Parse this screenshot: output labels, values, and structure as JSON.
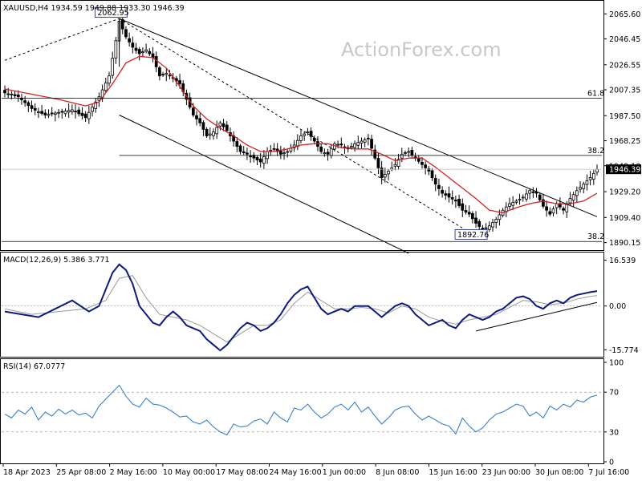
{
  "chart_data": [
    {
      "panel": "price",
      "type": "candlestick",
      "header": "XAUUSD,H4  1934.59 1949.88 1933.30 1946.39",
      "watermark": "ActionForex.com",
      "ylim": [
        1885,
        2075
      ],
      "y_ticks": [
        "2065.60",
        "2046.45",
        "2026.55",
        "2007.35",
        "1987.50",
        "1968.25",
        "1949.10",
        "1929.20",
        "1909.40",
        "1890.15"
      ],
      "x_ticks": [
        "18 Apr 2023",
        "25 Apr 08:00",
        "2 May 16:00",
        "10 May 00:00",
        "17 May 08:00",
        "24 May 16:00",
        "1 Jun 00:00",
        "8 Jun 08:00",
        "15 Jun 16:00",
        "23 Jun 00:00",
        "30 Jun 08:00",
        "7 Jul 16:00"
      ],
      "last_price": "1946.39",
      "close_path": [
        [
          0,
          2005
        ],
        [
          4,
          2002
        ],
        [
          8,
          1993
        ],
        [
          12,
          1988
        ],
        [
          16,
          1990
        ],
        [
          20,
          1992
        ],
        [
          24,
          1986
        ],
        [
          28,
          2002
        ],
        [
          31,
          2018
        ],
        [
          33,
          2045
        ],
        [
          34,
          2060
        ],
        [
          36,
          2048
        ],
        [
          38,
          2040
        ],
        [
          40,
          2035
        ],
        [
          42,
          2038
        ],
        [
          44,
          2032
        ],
        [
          46,
          2018
        ],
        [
          48,
          2020
        ],
        [
          50,
          2016
        ],
        [
          52,
          2012
        ],
        [
          54,
          2000
        ],
        [
          56,
          1988
        ],
        [
          58,
          1982
        ],
        [
          60,
          1972
        ],
        [
          62,
          1975
        ],
        [
          64,
          1982
        ],
        [
          66,
          1976
        ],
        [
          68,
          1968
        ],
        [
          70,
          1960
        ],
        [
          72,
          1958
        ],
        [
          74,
          1955
        ],
        [
          76,
          1952
        ],
        [
          78,
          1960
        ],
        [
          80,
          1962
        ],
        [
          82,
          1958
        ],
        [
          84,
          1960
        ],
        [
          86,
          1965
        ],
        [
          88,
          1972
        ],
        [
          90,
          1975
        ],
        [
          92,
          1968
        ],
        [
          94,
          1960
        ],
        [
          96,
          1958
        ],
        [
          98,
          1966
        ],
        [
          100,
          1965
        ],
        [
          102,
          1962
        ],
        [
          104,
          1966
        ],
        [
          106,
          1968
        ],
        [
          108,
          1970
        ],
        [
          110,
          1955
        ],
        [
          112,
          1940
        ],
        [
          114,
          1945
        ],
        [
          116,
          1950
        ],
        [
          118,
          1958
        ],
        [
          120,
          1960
        ],
        [
          122,
          1955
        ],
        [
          124,
          1950
        ],
        [
          126,
          1945
        ],
        [
          128,
          1935
        ],
        [
          130,
          1928
        ],
        [
          132,
          1925
        ],
        [
          134,
          1922
        ],
        [
          136,
          1915
        ],
        [
          138,
          1912
        ],
        [
          140,
          1905
        ],
        [
          142,
          1900
        ],
        [
          144,
          1903
        ],
        [
          146,
          1908
        ],
        [
          148,
          1915
        ],
        [
          150,
          1920
        ],
        [
          152,
          1922
        ],
        [
          154,
          1925
        ],
        [
          156,
          1930
        ],
        [
          158,
          1928
        ],
        [
          160,
          1918
        ],
        [
          162,
          1912
        ],
        [
          164,
          1920
        ],
        [
          166,
          1915
        ],
        [
          168,
          1924
        ],
        [
          170,
          1930
        ],
        [
          172,
          1935
        ],
        [
          174,
          1940
        ],
        [
          176,
          1946.39
        ]
      ],
      "ma_path": [
        [
          0,
          2008
        ],
        [
          8,
          2004
        ],
        [
          16,
          2000
        ],
        [
          24,
          1995
        ],
        [
          28,
          1998
        ],
        [
          32,
          2012
        ],
        [
          36,
          2028
        ],
        [
          40,
          2033
        ],
        [
          44,
          2032
        ],
        [
          48,
          2024
        ],
        [
          52,
          2010
        ],
        [
          56,
          1995
        ],
        [
          60,
          1985
        ],
        [
          64,
          1978
        ],
        [
          68,
          1972
        ],
        [
          72,
          1965
        ],
        [
          76,
          1960
        ],
        [
          80,
          1960
        ],
        [
          84,
          1962
        ],
        [
          88,
          1965
        ],
        [
          92,
          1966
        ],
        [
          96,
          1966
        ],
        [
          100,
          1963
        ],
        [
          104,
          1962
        ],
        [
          108,
          1962
        ],
        [
          112,
          1958
        ],
        [
          116,
          1953
        ],
        [
          120,
          1955
        ],
        [
          124,
          1955
        ],
        [
          128,
          1948
        ],
        [
          132,
          1940
        ],
        [
          136,
          1932
        ],
        [
          140,
          1924
        ],
        [
          144,
          1915
        ],
        [
          148,
          1913
        ],
        [
          152,
          1917
        ],
        [
          156,
          1920
        ],
        [
          160,
          1922
        ],
        [
          164,
          1920
        ],
        [
          168,
          1920
        ],
        [
          172,
          1922
        ],
        [
          176,
          1928
        ]
      ],
      "hlines": [
        {
          "value": 2001,
          "label": "61.8"
        },
        {
          "value": 1957,
          "label": "38.2"
        },
        {
          "value": 1891,
          "label": "38.2"
        }
      ],
      "labels": [
        {
          "text": "2062.95",
          "at": [
            33,
            2062.95
          ]
        },
        {
          "text": "1892.76",
          "at": [
            140,
            1892.76
          ]
        }
      ]
    },
    {
      "panel": "macd",
      "type": "line",
      "header": "MACD(12,26,9) 5.386 3.771",
      "ylim": [
        -18,
        19
      ],
      "y_ticks": [
        "16.539",
        "0.00",
        "-15.774"
      ],
      "macd_path": [
        [
          0,
          -2
        ],
        [
          5,
          -3
        ],
        [
          10,
          -4
        ],
        [
          15,
          -1
        ],
        [
          20,
          2
        ],
        [
          25,
          -2
        ],
        [
          28,
          0
        ],
        [
          30,
          6
        ],
        [
          32,
          12
        ],
        [
          34,
          15
        ],
        [
          36,
          13
        ],
        [
          38,
          8
        ],
        [
          40,
          0
        ],
        [
          42,
          -3
        ],
        [
          44,
          -6
        ],
        [
          46,
          -7
        ],
        [
          48,
          -4
        ],
        [
          50,
          -2
        ],
        [
          52,
          -4
        ],
        [
          54,
          -7
        ],
        [
          56,
          -8
        ],
        [
          58,
          -9
        ],
        [
          60,
          -12
        ],
        [
          62,
          -14
        ],
        [
          64,
          -16
        ],
        [
          66,
          -14
        ],
        [
          68,
          -11
        ],
        [
          70,
          -8
        ],
        [
          72,
          -6
        ],
        [
          74,
          -7
        ],
        [
          76,
          -9
        ],
        [
          78,
          -8
        ],
        [
          80,
          -6
        ],
        [
          82,
          -3
        ],
        [
          84,
          1
        ],
        [
          86,
          4
        ],
        [
          88,
          6
        ],
        [
          90,
          7
        ],
        [
          92,
          3
        ],
        [
          94,
          -1
        ],
        [
          96,
          -3
        ],
        [
          98,
          -2
        ],
        [
          100,
          -1
        ],
        [
          102,
          -2
        ],
        [
          104,
          0
        ],
        [
          106,
          0
        ],
        [
          108,
          0
        ],
        [
          110,
          -2
        ],
        [
          112,
          -4
        ],
        [
          114,
          -2
        ],
        [
          116,
          0
        ],
        [
          118,
          1
        ],
        [
          120,
          0
        ],
        [
          122,
          -3
        ],
        [
          124,
          -5
        ],
        [
          126,
          -7
        ],
        [
          128,
          -6
        ],
        [
          130,
          -5
        ],
        [
          132,
          -7
        ],
        [
          134,
          -8
        ],
        [
          136,
          -5
        ],
        [
          138,
          -3
        ],
        [
          140,
          -4
        ],
        [
          142,
          -5
        ],
        [
          144,
          -4
        ],
        [
          146,
          -2
        ],
        [
          148,
          -1
        ],
        [
          150,
          1
        ],
        [
          152,
          3
        ],
        [
          154,
          3.5
        ],
        [
          156,
          2.5
        ],
        [
          158,
          0
        ],
        [
          160,
          -1
        ],
        [
          162,
          1
        ],
        [
          164,
          2
        ],
        [
          166,
          1
        ],
        [
          168,
          3
        ],
        [
          170,
          4
        ],
        [
          172,
          4.5
        ],
        [
          174,
          5
        ],
        [
          176,
          5.386
        ]
      ],
      "signal_path": [
        [
          0,
          -1
        ],
        [
          8,
          -3
        ],
        [
          16,
          -2
        ],
        [
          24,
          -1
        ],
        [
          30,
          2
        ],
        [
          34,
          10
        ],
        [
          38,
          11
        ],
        [
          42,
          3
        ],
        [
          46,
          -3
        ],
        [
          50,
          -4
        ],
        [
          54,
          -5
        ],
        [
          58,
          -7
        ],
        [
          62,
          -10
        ],
        [
          66,
          -13
        ],
        [
          70,
          -10
        ],
        [
          74,
          -7
        ],
        [
          78,
          -7
        ],
        [
          82,
          -5
        ],
        [
          86,
          1
        ],
        [
          90,
          5
        ],
        [
          94,
          2
        ],
        [
          98,
          -1
        ],
        [
          102,
          -1
        ],
        [
          106,
          -0.5
        ],
        [
          110,
          -1
        ],
        [
          114,
          -2.5
        ],
        [
          118,
          0
        ],
        [
          122,
          -1
        ],
        [
          126,
          -4
        ],
        [
          130,
          -5.5
        ],
        [
          134,
          -6.5
        ],
        [
          138,
          -5
        ],
        [
          142,
          -4
        ],
        [
          146,
          -3
        ],
        [
          150,
          -0.5
        ],
        [
          154,
          2
        ],
        [
          158,
          1.5
        ],
        [
          162,
          0.5
        ],
        [
          166,
          1
        ],
        [
          170,
          2.5
        ],
        [
          174,
          3.5
        ],
        [
          176,
          3.771
        ]
      ],
      "trendline": [
        [
          140,
          -9
        ],
        [
          176,
          1.3
        ]
      ]
    },
    {
      "panel": "rsi",
      "type": "line",
      "header": "RSI(14) 67.0777",
      "ylim": [
        0,
        100
      ],
      "y_ticks": [
        "100",
        "70",
        "30",
        "0"
      ],
      "levels": [
        70,
        30
      ],
      "rsi_path": [
        [
          0,
          48
        ],
        [
          2,
          44
        ],
        [
          4,
          52
        ],
        [
          6,
          48
        ],
        [
          8,
          55
        ],
        [
          10,
          42
        ],
        [
          12,
          50
        ],
        [
          14,
          46
        ],
        [
          16,
          53
        ],
        [
          18,
          48
        ],
        [
          20,
          52
        ],
        [
          22,
          47
        ],
        [
          24,
          49
        ],
        [
          26,
          44
        ],
        [
          28,
          56
        ],
        [
          30,
          63
        ],
        [
          32,
          70
        ],
        [
          34,
          77
        ],
        [
          36,
          66
        ],
        [
          38,
          58
        ],
        [
          40,
          55
        ],
        [
          42,
          64
        ],
        [
          44,
          58
        ],
        [
          46,
          57
        ],
        [
          48,
          54
        ],
        [
          50,
          50
        ],
        [
          52,
          45
        ],
        [
          54,
          46
        ],
        [
          56,
          40
        ],
        [
          58,
          38
        ],
        [
          60,
          42
        ],
        [
          62,
          35
        ],
        [
          64,
          30
        ],
        [
          66,
          27
        ],
        [
          68,
          38
        ],
        [
          70,
          35
        ],
        [
          72,
          36
        ],
        [
          74,
          41
        ],
        [
          76,
          43
        ],
        [
          78,
          38
        ],
        [
          80,
          50
        ],
        [
          82,
          44
        ],
        [
          84,
          40
        ],
        [
          86,
          54
        ],
        [
          88,
          52
        ],
        [
          90,
          58
        ],
        [
          92,
          50
        ],
        [
          94,
          44
        ],
        [
          96,
          48
        ],
        [
          98,
          55
        ],
        [
          100,
          58
        ],
        [
          102,
          52
        ],
        [
          104,
          60
        ],
        [
          106,
          50
        ],
        [
          108,
          55
        ],
        [
          110,
          46
        ],
        [
          112,
          38
        ],
        [
          114,
          44
        ],
        [
          116,
          52
        ],
        [
          118,
          55
        ],
        [
          120,
          56
        ],
        [
          122,
          48
        ],
        [
          124,
          42
        ],
        [
          126,
          46
        ],
        [
          128,
          42
        ],
        [
          130,
          38
        ],
        [
          132,
          36
        ],
        [
          134,
          28
        ],
        [
          136,
          44
        ],
        [
          138,
          36
        ],
        [
          140,
          30
        ],
        [
          142,
          34
        ],
        [
          144,
          42
        ],
        [
          146,
          48
        ],
        [
          148,
          50
        ],
        [
          150,
          54
        ],
        [
          152,
          58
        ],
        [
          154,
          56
        ],
        [
          156,
          46
        ],
        [
          158,
          50
        ],
        [
          160,
          44
        ],
        [
          162,
          56
        ],
        [
          164,
          52
        ],
        [
          166,
          58
        ],
        [
          168,
          55
        ],
        [
          170,
          62
        ],
        [
          172,
          60
        ],
        [
          174,
          65
        ],
        [
          176,
          67.08
        ]
      ]
    }
  ],
  "colors": {
    "candle": "#000000",
    "ma": "#d42020",
    "macd": "#0b1a7c",
    "signal": "#999999",
    "trendline": "#000000",
    "rsi": "#3a7fd0",
    "label_box": "#0b1a7c"
  }
}
